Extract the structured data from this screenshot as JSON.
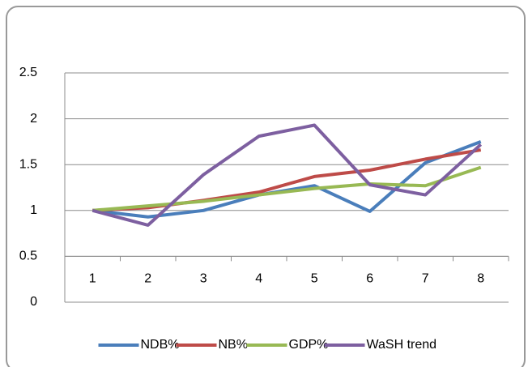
{
  "chart_data": {
    "type": "line",
    "categories": [
      "1",
      "2",
      "3",
      "4",
      "5",
      "6",
      "7",
      "8"
    ],
    "series": [
      {
        "name": "NDB%",
        "color": "#4a7ebb",
        "values": [
          1,
          0.93,
          1.0,
          1.17,
          1.27,
          0.99,
          1.52,
          1.75
        ]
      },
      {
        "name": "NB%",
        "color": "#be4b48",
        "values": [
          1,
          1.03,
          1.11,
          1.2,
          1.37,
          1.44,
          1.56,
          1.66
        ]
      },
      {
        "name": "GDP%",
        "color": "#98b954",
        "values": [
          1,
          1.05,
          1.1,
          1.17,
          1.24,
          1.29,
          1.27,
          1.47
        ]
      },
      {
        "name": "WaSH trend",
        "color": "#7d5fa0",
        "values": [
          1,
          0.84,
          1.39,
          1.81,
          1.93,
          1.28,
          1.17,
          1.72
        ]
      }
    ],
    "ylim": [
      0,
      2.5
    ],
    "yticks": [
      0,
      0.5,
      1,
      1.5,
      2,
      2.5
    ],
    "grid": true,
    "x_axis_crosses": 0.5,
    "legend": "bottom"
  }
}
